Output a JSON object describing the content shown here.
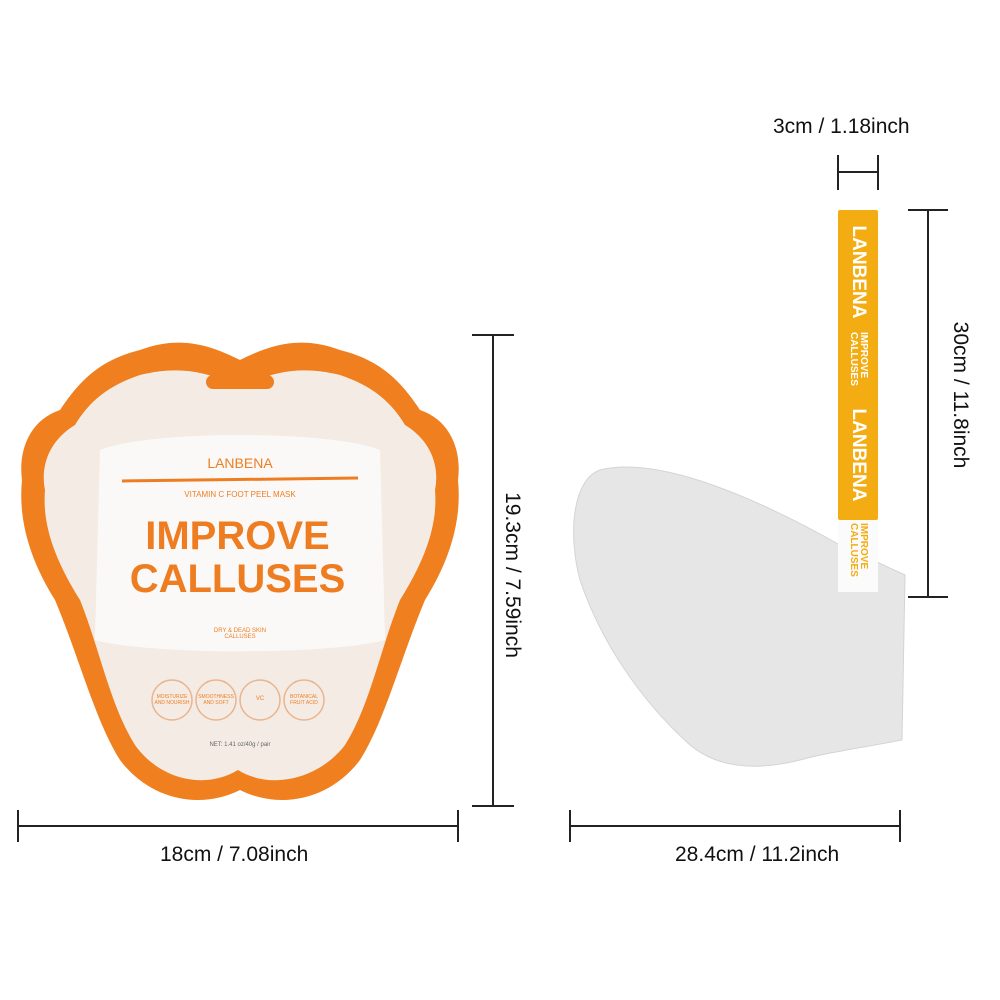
{
  "dimensions": {
    "package_height": "19.3cm / 7.59inch",
    "package_width": "18cm / 7.08inch",
    "mask_strip_width": "3cm / 1.18inch",
    "mask_strip_length": "30cm / 11.8inch",
    "mask_width": "28.4cm / 11.2inch"
  },
  "package": {
    "brand": "LANBENA",
    "subtitle": "VITAMIN C FOOT PEEL MASK",
    "headline_1": "IMPROVE",
    "headline_2": "CALLUSES",
    "tagline": "DRY & DEAD SKIN CALLUSES",
    "badges": [
      "MOISTURIZE AND NOURISH",
      "SMOOTHNESS AND SOFT",
      "VC",
      "BOTANICAL FRUIT ACID"
    ],
    "net_weight": "NET: 1.41 oz/40g / pair"
  },
  "strip": {
    "brand": "LANBENA",
    "text": "IMPROVE CALLUSES"
  },
  "colors": {
    "orange": "#ee7d22",
    "strip_yellow": "#f3ac12",
    "mask_gray": "#e4e4e4"
  }
}
